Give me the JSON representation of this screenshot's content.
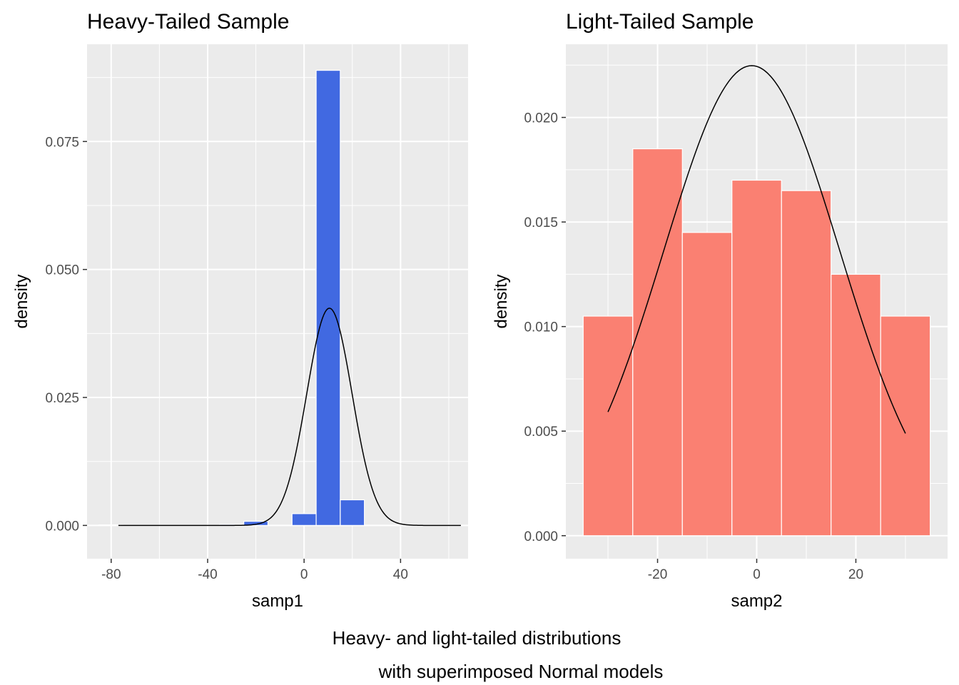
{
  "caption": {
    "line1": "Heavy- and light-tailed distributions",
    "line2": "with superimposed Normal models"
  },
  "colors": {
    "panel_bg": "#EBEBEB",
    "grid": "#FFFFFF",
    "bar_heavy": "#4169E1",
    "bar_light": "#FA8072",
    "bar_border": "#FFFFFF",
    "curve": "#000000",
    "tick_text": "#4D4D4D"
  },
  "chart_data": [
    {
      "type": "bar",
      "subtype": "histogram",
      "title": "Heavy-Tailed Sample",
      "xlabel": "samp1",
      "ylabel": "density",
      "xlim": [
        -90,
        68
      ],
      "ylim": [
        -0.0065,
        0.094
      ],
      "xticks": [
        -80,
        -40,
        0,
        40
      ],
      "xtick_labels": [
        "-80",
        "-40",
        "0",
        "40"
      ],
      "yticks": [
        0,
        0.025,
        0.05,
        0.075
      ],
      "ytick_labels": [
        "0.000",
        "0.025",
        "0.050",
        "0.075"
      ],
      "bin_width": 10,
      "bins": [
        {
          "x0": -85,
          "x1": -75,
          "density": 0.0001
        },
        {
          "x0": -75,
          "x1": -65,
          "density": 0.0
        },
        {
          "x0": -65,
          "x1": -55,
          "density": 0.0
        },
        {
          "x0": -55,
          "x1": -45,
          "density": 0.0
        },
        {
          "x0": -45,
          "x1": -35,
          "density": 0.0
        },
        {
          "x0": -35,
          "x1": -25,
          "density": 0.0002
        },
        {
          "x0": -25,
          "x1": -15,
          "density": 0.0008
        },
        {
          "x0": -15,
          "x1": -5,
          "density": 0.0
        },
        {
          "x0": -5,
          "x1": 5,
          "density": 0.0023
        },
        {
          "x0": 5,
          "x1": 15,
          "density": 0.0889
        },
        {
          "x0": 15,
          "x1": 25,
          "density": 0.005
        },
        {
          "x0": 25,
          "x1": 35,
          "density": 0.0
        },
        {
          "x0": 35,
          "x1": 45,
          "density": 0.0
        },
        {
          "x0": 45,
          "x1": 55,
          "density": 0.0001
        },
        {
          "x0": 55,
          "x1": 65,
          "density": 0.0001
        }
      ],
      "normal_curve": {
        "mean": 10.5,
        "sd": 9.4,
        "x_range": [
          -77,
          65
        ]
      },
      "grid": true
    },
    {
      "type": "bar",
      "subtype": "histogram",
      "title": "Light-Tailed Sample",
      "xlabel": "samp2",
      "ylabel": "density",
      "xlim": [
        -38.5,
        38.5
      ],
      "ylim": [
        -0.0011,
        0.0235
      ],
      "xticks": [
        -20,
        0,
        20
      ],
      "xtick_labels": [
        "-20",
        "0",
        "20"
      ],
      "yticks": [
        0,
        0.005,
        0.01,
        0.015,
        0.02
      ],
      "ytick_labels": [
        "0.000",
        "0.005",
        "0.010",
        "0.015",
        "0.020"
      ],
      "bin_width": 10,
      "bins": [
        {
          "x0": -35,
          "x1": -25,
          "density": 0.0105
        },
        {
          "x0": -25,
          "x1": -15,
          "density": 0.0185
        },
        {
          "x0": -15,
          "x1": -5,
          "density": 0.0145
        },
        {
          "x0": -5,
          "x1": 5,
          "density": 0.017
        },
        {
          "x0": 5,
          "x1": 15,
          "density": 0.0165
        },
        {
          "x0": 15,
          "x1": 25,
          "density": 0.0125
        },
        {
          "x0": 25,
          "x1": 35,
          "density": 0.0105
        }
      ],
      "normal_curve": {
        "mean": -1,
        "sd": 17.75,
        "x_range": [
          -30,
          30
        ]
      },
      "grid": true
    }
  ]
}
